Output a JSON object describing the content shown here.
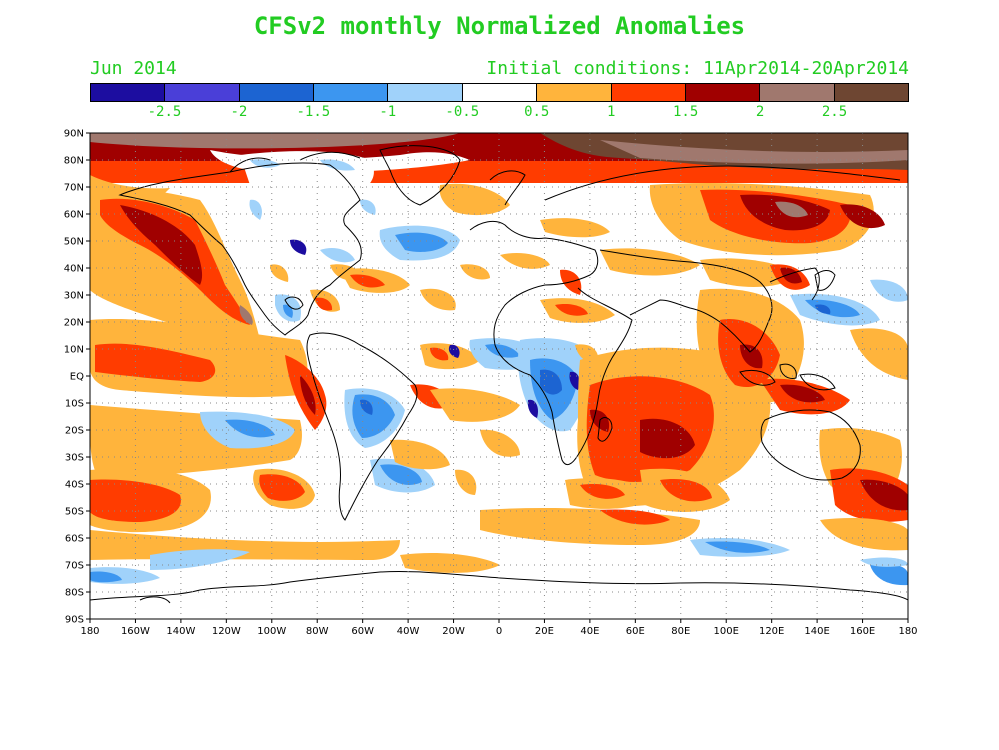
{
  "title": "CFSv2 monthly Normalized Anomalies",
  "subtitle_left": "Jun 2014",
  "subtitle_right": "Initial conditions: 11Apr2014-20Apr2014",
  "legend": {
    "colors": [
      "#1c0da0",
      "#4a3fd8",
      "#1c64d2",
      "#3c96f0",
      "#a0d2fa",
      "#ffffff",
      "#ffb43c",
      "#ff3c00",
      "#a00000",
      "#a0786e",
      "#6e4632"
    ],
    "labels": [
      "-2.5",
      "-2",
      "-1.5",
      "-1",
      "-0.5",
      "0.5",
      "1",
      "1.5",
      "2",
      "2.5"
    ]
  },
  "lat_labels": [
    "90N",
    "80N",
    "70N",
    "60N",
    "50N",
    "40N",
    "30N",
    "20N",
    "10N",
    "EQ",
    "10S",
    "20S",
    "30S",
    "40S",
    "50S",
    "60S",
    "70S",
    "80S",
    "90S"
  ],
  "lon_labels": [
    "180",
    "160W",
    "140W",
    "120W",
    "100W",
    "80W",
    "60W",
    "40W",
    "20W",
    "0",
    "20E",
    "40E",
    "60E",
    "80E",
    "100E",
    "120E",
    "140E",
    "160E",
    "180"
  ]
}
